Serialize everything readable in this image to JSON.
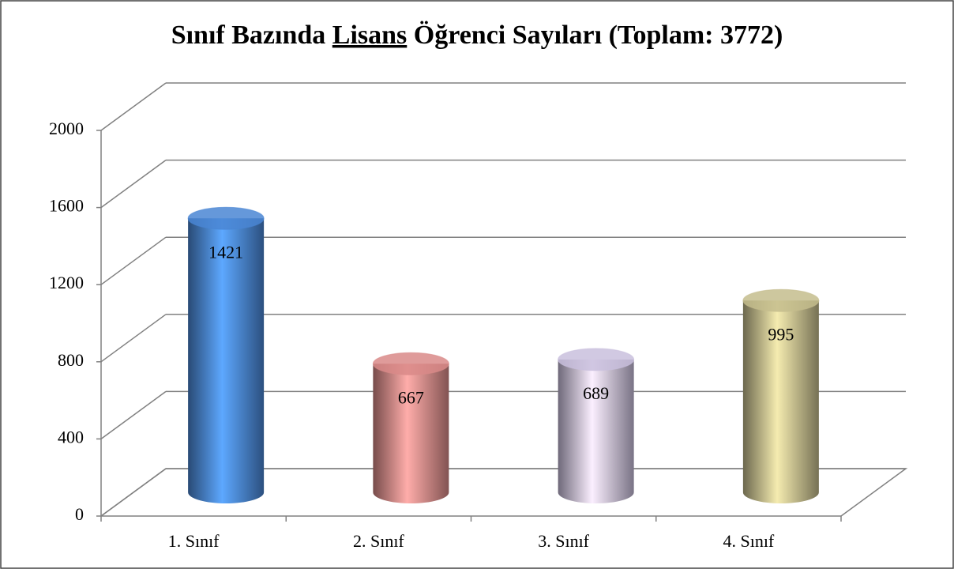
{
  "chart_data": {
    "type": "bar3d",
    "title": [
      "Sınıf Bazında ",
      "Lisans",
      " Öğrenci Sayıları (Toplam: 3772)"
    ],
    "title_underline": 1,
    "categories": [
      "1. Sınıf",
      "2. Sınıf",
      "3. Sınıf",
      "4. Sınıf"
    ],
    "values": [
      1421,
      667,
      689,
      995
    ],
    "colors": [
      "#4a86d4",
      "#d98a88",
      "#c9bfdd",
      "#c4bd8d"
    ],
    "ylim": [
      0,
      2000
    ],
    "yticks": [
      0,
      400,
      800,
      1200,
      1600,
      2000
    ],
    "grid": true
  }
}
